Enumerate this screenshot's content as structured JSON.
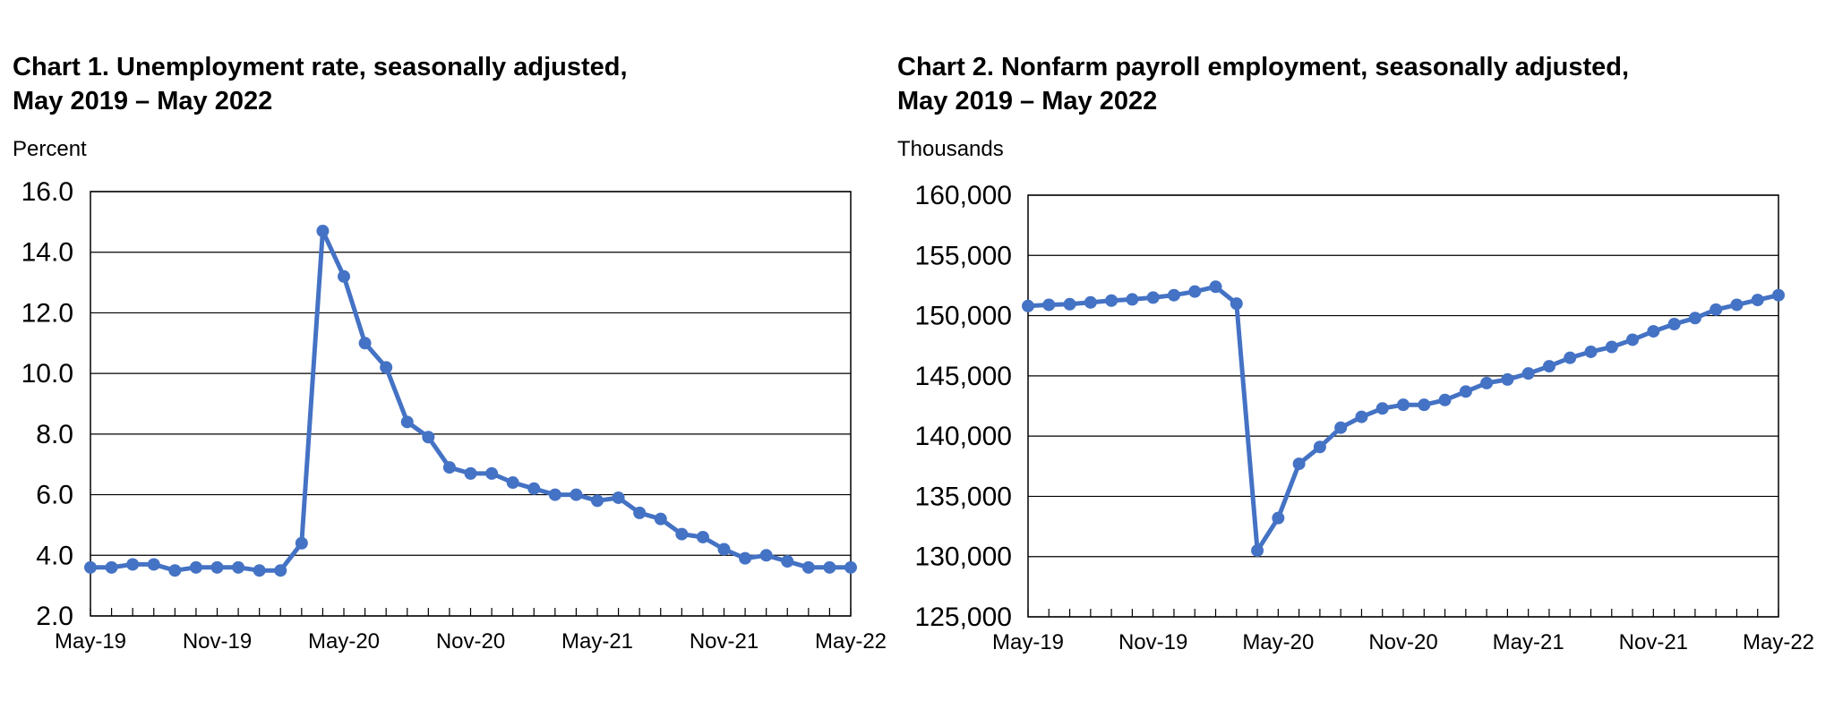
{
  "accent_color": "#4472C4",
  "chart_data": [
    {
      "type": "line",
      "title": "Chart 1. Unemployment rate, seasonally adjusted,\nMay 2019 – May 2022",
      "ylabel": "Percent",
      "ylim": [
        2.0,
        16.0
      ],
      "yticks": [
        "2.0",
        "4.0",
        "6.0",
        "8.0",
        "10.0",
        "12.0",
        "14.0",
        "16.0"
      ],
      "xticks": [
        "May-19",
        "Nov-19",
        "May-20",
        "Nov-20",
        "May-21",
        "Nov-21",
        "May-22"
      ],
      "grid": true,
      "series_color": "#4472C4",
      "series": [
        {
          "values": [
            3.6,
            3.6,
            3.7,
            3.7,
            3.5,
            3.6,
            3.6,
            3.6,
            3.5,
            3.5,
            4.4,
            14.7,
            13.2,
            11.0,
            10.2,
            8.4,
            7.9,
            6.9,
            6.7,
            6.7,
            6.4,
            6.2,
            6.0,
            6.0,
            5.8,
            5.9,
            5.4,
            5.2,
            4.7,
            4.6,
            4.2,
            3.9,
            4.0,
            3.8,
            3.6,
            3.6,
            3.6
          ]
        }
      ]
    },
    {
      "type": "line",
      "title": "Chart 2. Nonfarm payroll employment, seasonally adjusted,\nMay 2019 – May 2022",
      "ylabel": "Thousands",
      "ylim": [
        125000,
        160000
      ],
      "yticks": [
        "125,000",
        "130,000",
        "135,000",
        "140,000",
        "145,000",
        "150,000",
        "155,000",
        "160,000"
      ],
      "xticks": [
        "May-19",
        "Nov-19",
        "May-20",
        "Nov-20",
        "May-21",
        "Nov-21",
        "May-22"
      ],
      "grid": true,
      "series_color": "#4472C4",
      "series": [
        {
          "values": [
            150800,
            150900,
            150950,
            151100,
            151250,
            151350,
            151500,
            151700,
            152000,
            152400,
            151000,
            130500,
            133200,
            137700,
            139100,
            140700,
            141600,
            142300,
            142600,
            142600,
            143000,
            143700,
            144400,
            144700,
            145200,
            145800,
            146500,
            147000,
            147400,
            148000,
            148700,
            149300,
            149800,
            150500,
            150900,
            151300,
            151700
          ]
        }
      ]
    }
  ]
}
